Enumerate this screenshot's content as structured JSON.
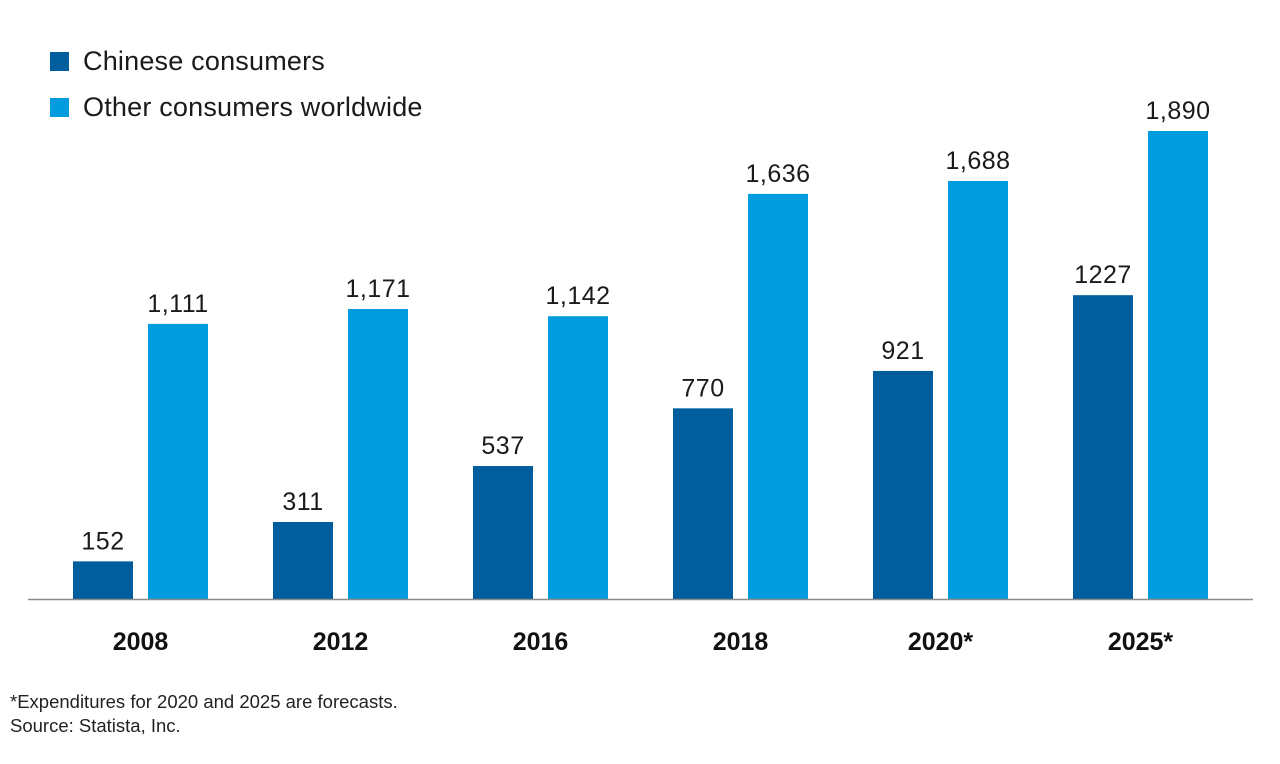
{
  "chart_data": {
    "type": "bar",
    "categories": [
      "2008",
      "2012",
      "2016",
      "2018",
      "2020*",
      "2025*"
    ],
    "series": [
      {
        "name": "Chinese consumers",
        "color": "#005E9E",
        "values": [
          152,
          311,
          537,
          770,
          921,
          1227
        ],
        "labels": [
          "152",
          "311",
          "537",
          "770",
          "921",
          "1227"
        ]
      },
      {
        "name": "Other consumers worldwide",
        "color": "#009CDE",
        "values": [
          1111,
          1171,
          1142,
          1636,
          1688,
          1890
        ],
        "labels": [
          "1,111",
          "1,171",
          "1,142",
          "1,636",
          "1,688",
          "1,890"
        ]
      }
    ],
    "title": "",
    "xlabel": "",
    "ylabel": "",
    "ylim": [
      0,
      1890
    ],
    "grid": false,
    "legend_position": "top-left",
    "axis_color": "#8A8A8A"
  },
  "footnote": {
    "line1": "*Expenditures for 2020 and 2025 are forecasts.",
    "line2": "Source: Statista, Inc."
  }
}
